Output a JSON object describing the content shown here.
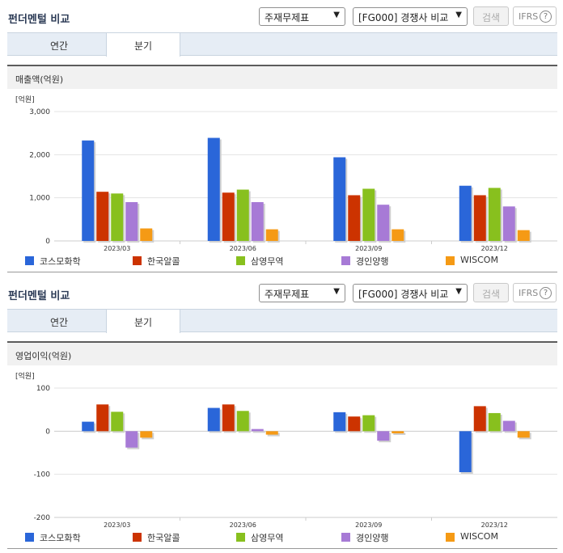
{
  "panels": [
    {
      "title": "펀더멘털 비교",
      "select1": "주재무제표",
      "select2": "[FG000] 경쟁사 비교",
      "search_label": "검색",
      "ifrs_label": "IFRS",
      "help_glyph": "?",
      "tabs": [
        "연간",
        "분기"
      ],
      "active_tab": 1,
      "subtitle": "매출액(억원)"
    },
    {
      "title": "펀더멘털 비교",
      "select1": "주재무제표",
      "select2": "[FG000] 경쟁사 비교",
      "search_label": "검색",
      "ifrs_label": "IFRS",
      "help_glyph": "?",
      "tabs": [
        "연간",
        "분기"
      ],
      "active_tab": 1,
      "subtitle": "영업이익(억원)"
    }
  ],
  "colors": {
    "코스모화학": "#2a66d9",
    "한국알콜": "#cc3300",
    "삼영무역": "#88c01e",
    "경인양행": "#a77ad6",
    "WISCOM": "#f59a15"
  },
  "chart_data": [
    {
      "type": "bar",
      "unit_label": "[억원]",
      "categories": [
        "2023/03",
        "2023/06",
        "2023/09",
        "2023/12"
      ],
      "ylim": [
        0,
        3000
      ],
      "yticks": [
        0,
        1000,
        2000,
        3000
      ],
      "ytick_labels": [
        "0",
        "1,000",
        "2,000",
        "3,000"
      ],
      "grid": true,
      "legend_position": "bottom",
      "series": [
        {
          "name": "코스모화학",
          "values": [
            2330,
            2390,
            1940,
            1280
          ]
        },
        {
          "name": "한국알콜",
          "values": [
            1140,
            1120,
            1060,
            1060
          ]
        },
        {
          "name": "삼영무역",
          "values": [
            1100,
            1190,
            1210,
            1230
          ]
        },
        {
          "name": "경인양행",
          "values": [
            900,
            900,
            840,
            800
          ]
        },
        {
          "name": "WISCOM",
          "values": [
            290,
            270,
            270,
            250
          ]
        }
      ]
    },
    {
      "type": "bar",
      "unit_label": "[억원]",
      "categories": [
        "2023/03",
        "2023/06",
        "2023/09",
        "2023/12"
      ],
      "ylim": [
        -200,
        100
      ],
      "yticks": [
        -200,
        -100,
        0,
        100
      ],
      "ytick_labels": [
        "-200",
        "-100",
        "0",
        "100"
      ],
      "grid": true,
      "legend_position": "bottom",
      "series": [
        {
          "name": "코스모화학",
          "values": [
            22,
            54,
            44,
            -95
          ]
        },
        {
          "name": "한국알콜",
          "values": [
            62,
            62,
            34,
            58
          ]
        },
        {
          "name": "삼영무역",
          "values": [
            45,
            47,
            37,
            42
          ]
        },
        {
          "name": "경인양행",
          "values": [
            -38,
            5,
            -22,
            24
          ]
        },
        {
          "name": "WISCOM",
          "values": [
            -15,
            -8,
            -5,
            -15
          ]
        }
      ]
    }
  ]
}
